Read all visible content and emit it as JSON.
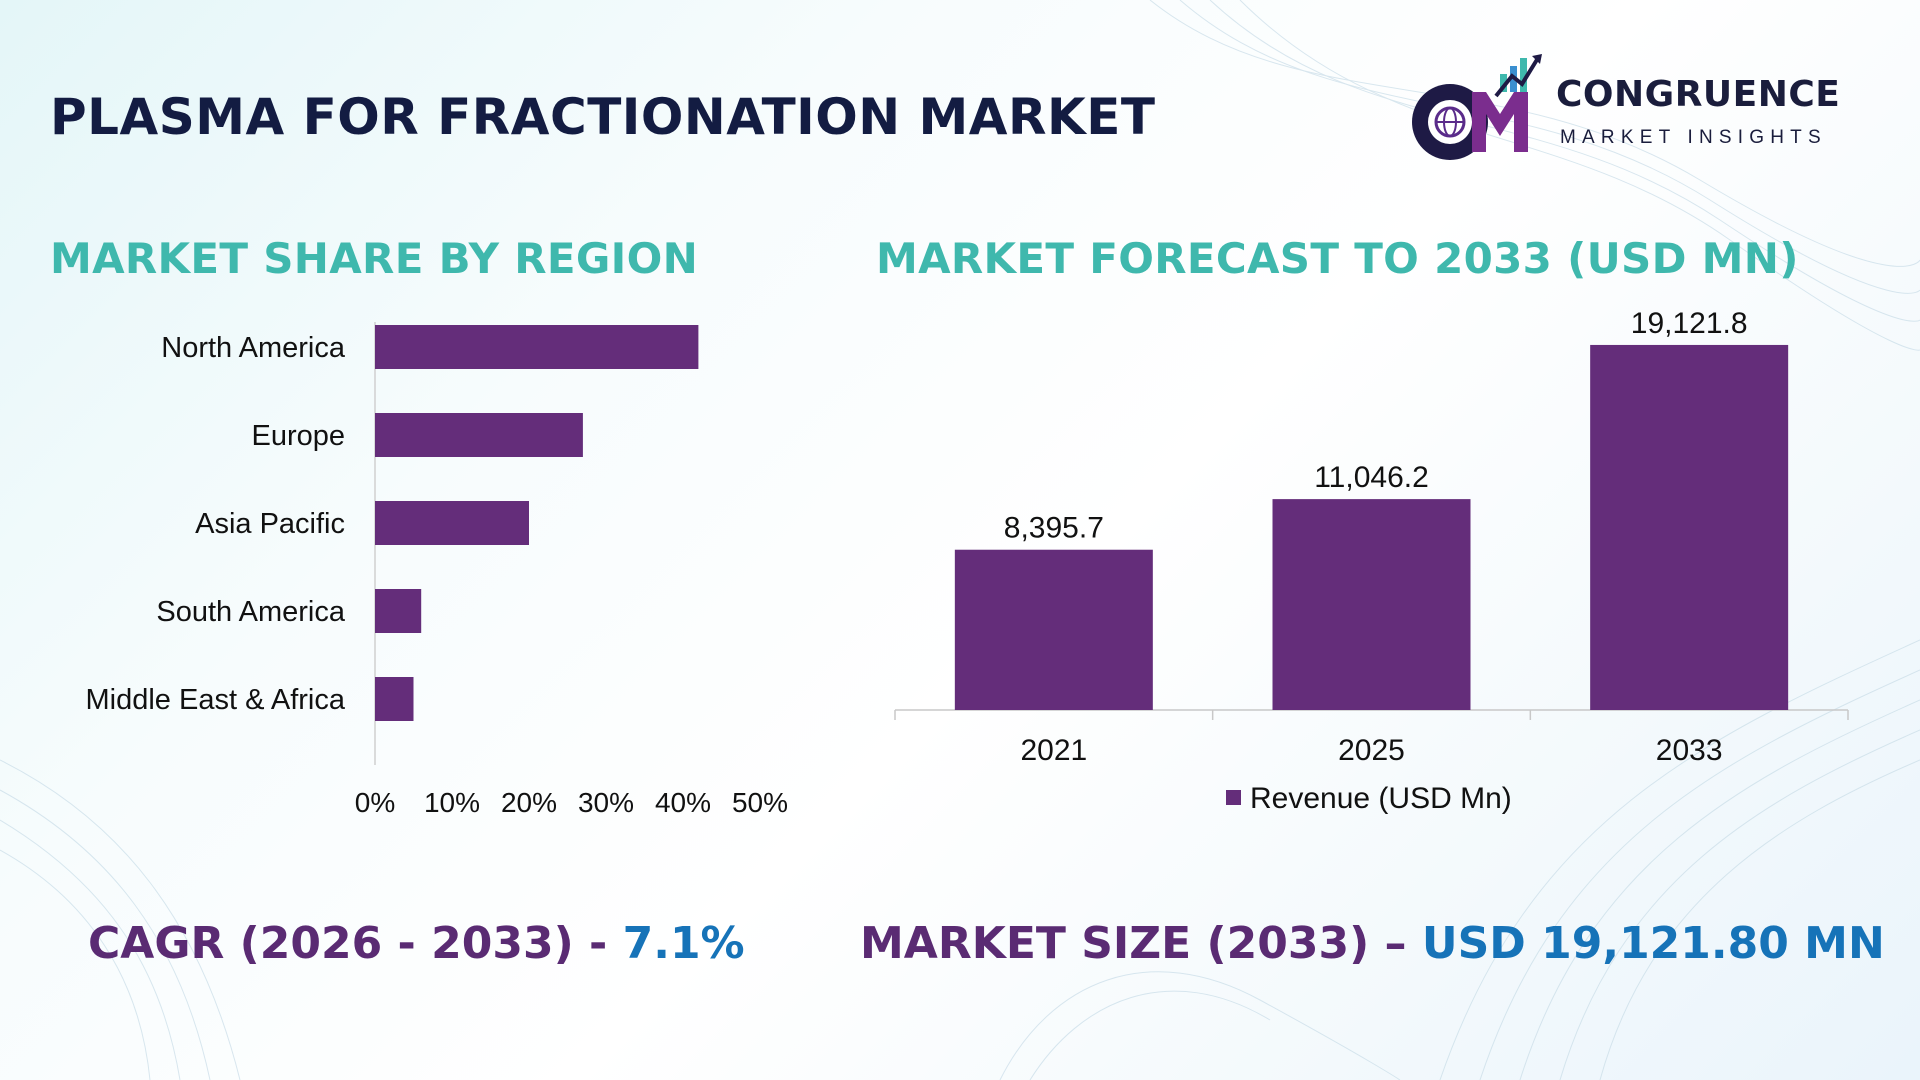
{
  "header": {
    "title": "PLASMA FOR FRACTIONATION MARKET",
    "brand_name": "CONGRUENCE",
    "brand_tagline": "MARKET INSIGHTS"
  },
  "left_section": {
    "title": "MARKET SHARE BY REGION"
  },
  "right_section": {
    "title": "MARKET FORECAST TO 2033 (USD MN)"
  },
  "colors": {
    "bar": "#642d7a",
    "section_title": "#3fb8ad",
    "stat_label": "#5a2b73",
    "stat_value": "#1673b8",
    "title": "#131c42"
  },
  "chart_data": [
    {
      "type": "bar",
      "orientation": "horizontal",
      "categories": [
        "North America",
        "Europe",
        "Asia Pacific",
        "South America",
        "Middle East & Africa"
      ],
      "values": [
        42,
        27,
        20,
        6,
        5
      ],
      "unit": "%",
      "xlim": [
        0,
        50
      ],
      "xticks": [
        "0%",
        "10%",
        "20%",
        "30%",
        "40%",
        "50%"
      ],
      "grid": false,
      "legend": "none"
    },
    {
      "type": "bar",
      "orientation": "vertical",
      "categories": [
        "2021",
        "2025",
        "2033"
      ],
      "series": [
        {
          "name": "Revenue (USD Mn)",
          "values": [
            8395.7,
            11046.2,
            19121.8
          ]
        }
      ],
      "data_labels": [
        "8,395.7",
        "11,046.2",
        "19,121.8"
      ],
      "ylim": [
        0,
        22000
      ],
      "grid": false,
      "legend": "bottom"
    }
  ],
  "footer": {
    "cagr_label": "CAGR (2026 - 2033) - ",
    "cagr_value": "7.1%",
    "size_label": "MARKET SIZE (2033) – ",
    "size_value": "USD 19,121.80 MN"
  }
}
